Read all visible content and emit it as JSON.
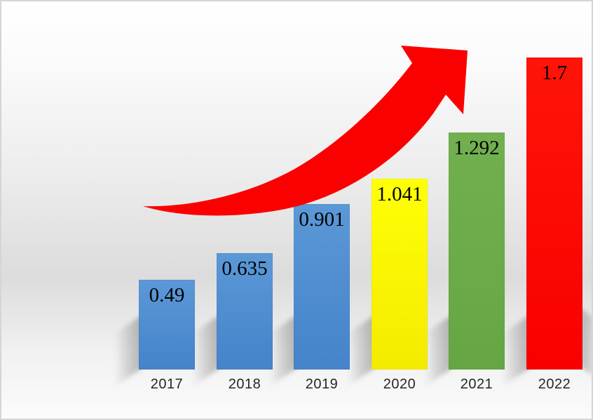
{
  "chart_data": {
    "type": "bar",
    "title": "",
    "xlabel": "",
    "ylabel": "",
    "categories": [
      "2017",
      "2018",
      "2019",
      "2020",
      "2021",
      "2022"
    ],
    "values": [
      0.49,
      0.635,
      0.901,
      1.041,
      1.292,
      1.7
    ],
    "ylim": [
      0,
      1.7
    ],
    "grid": false,
    "legend": null,
    "bars": [
      {
        "label": "2017",
        "value": 0.49,
        "value_label": "0.49",
        "color_top": "#5b98d6",
        "color_bottom": "#4583cb"
      },
      {
        "label": "2018",
        "value": 0.635,
        "value_label": "0.635",
        "color_top": "#5b98d6",
        "color_bottom": "#4583cb"
      },
      {
        "label": "2019",
        "value": 0.901,
        "value_label": "0.901",
        "color_top": "#5b98d6",
        "color_bottom": "#4583cb"
      },
      {
        "label": "2020",
        "value": 1.041,
        "value_label": "1.041",
        "color_top": "#ffff06",
        "color_bottom": "#f4eb00"
      },
      {
        "label": "2021",
        "value": 1.292,
        "value_label": "1.292",
        "color_top": "#72b04f",
        "color_bottom": "#65a643"
      },
      {
        "label": "2022",
        "value": 1.7,
        "value_label": "1.7",
        "color_top": "#ff1408",
        "color_bottom": "#f90000"
      }
    ],
    "value_label_color": "#000000",
    "axis_label_color": "#262626",
    "annotations": [
      {
        "name": "growth-arrow",
        "type": "curved-arrow",
        "direction": "up-right",
        "color": "#fb0000"
      }
    ]
  }
}
